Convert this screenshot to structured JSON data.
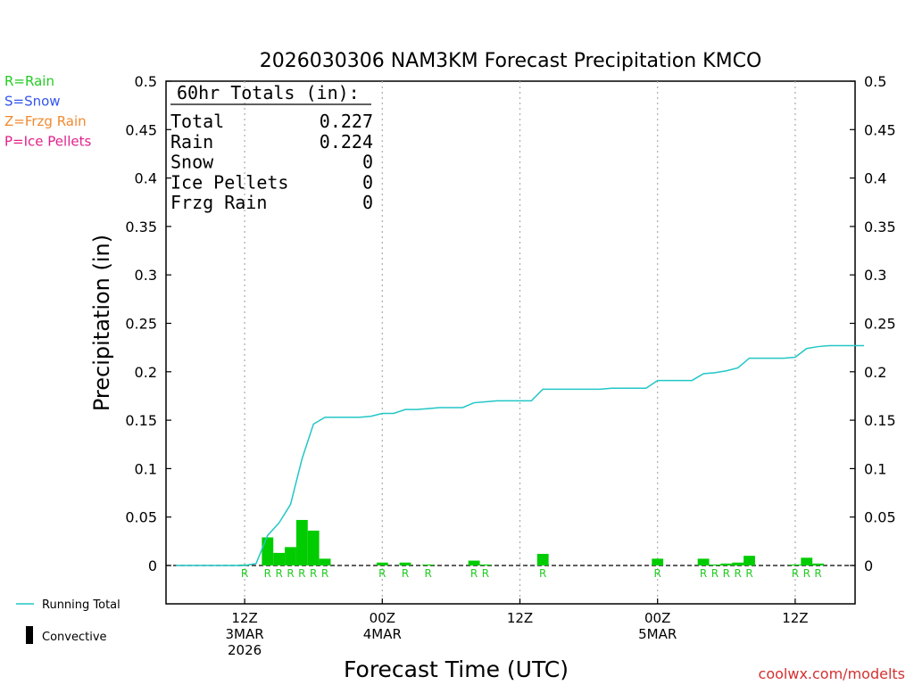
{
  "chart_data": {
    "type": "bar",
    "title": "2026030306 NAM3KM Forecast Precipitation KMCO",
    "xlabel": "Forecast Time (UTC)",
    "ylabel": "Precipitation (in)",
    "ylim": [
      -0.04,
      0.5
    ],
    "xlim_hours": [
      0,
      60
    ],
    "yticks": [
      "0.5",
      "0.45",
      "0.4",
      "0.35",
      "0.3",
      "0.25",
      "0.2",
      "0.15",
      "0.1",
      "0.05",
      "0"
    ],
    "ytick_values": [
      0.5,
      0.45,
      0.4,
      0.35,
      0.3,
      0.25,
      0.2,
      0.15,
      0.1,
      0.05,
      0
    ],
    "xticks": [
      {
        "hour": 6,
        "lines": [
          "12Z",
          "3MAR",
          "2026"
        ]
      },
      {
        "hour": 18,
        "lines": [
          "00Z",
          "4MAR"
        ]
      },
      {
        "hour": 30,
        "lines": [
          "12Z"
        ]
      },
      {
        "hour": 42,
        "lines": [
          "00Z",
          "5MAR"
        ]
      },
      {
        "hour": 54,
        "lines": [
          "12Z"
        ]
      }
    ],
    "legend_types": [
      {
        "label": "R=Rain",
        "color": "#22cc22"
      },
      {
        "label": "S=Snow",
        "color": "#3355ee"
      },
      {
        "label": "Z=Frzg Rain",
        "color": "#f08a30"
      },
      {
        "label": "P=Ice Pellets",
        "color": "#e0228a"
      }
    ],
    "legend_lines": {
      "running_total": "Running Total",
      "convective": "Convective"
    },
    "totals": {
      "heading": "60hr Totals (in):",
      "rows": [
        {
          "label": "Total",
          "value": "0.227"
        },
        {
          "label": "Rain",
          "value": "0.224"
        },
        {
          "label": "Snow",
          "value": "0"
        },
        {
          "label": "Ice Pellets",
          "value": "0"
        },
        {
          "label": "Frzg Rain",
          "value": "0"
        }
      ]
    },
    "hourly_bars": [
      {
        "hour": 6,
        "value": 0.001,
        "type": "R"
      },
      {
        "hour": 8,
        "value": 0.029,
        "type": "R"
      },
      {
        "hour": 9,
        "value": 0.013,
        "type": "R"
      },
      {
        "hour": 10,
        "value": 0.019,
        "type": "R"
      },
      {
        "hour": 11,
        "value": 0.047,
        "type": "R"
      },
      {
        "hour": 12,
        "value": 0.036,
        "type": "R"
      },
      {
        "hour": 13,
        "value": 0.007,
        "type": "R"
      },
      {
        "hour": 18,
        "value": 0.003,
        "type": "R"
      },
      {
        "hour": 20,
        "value": 0.003,
        "type": "R"
      },
      {
        "hour": 22,
        "value": 0.001,
        "type": "R"
      },
      {
        "hour": 26,
        "value": 0.005,
        "type": "R"
      },
      {
        "hour": 27,
        "value": 0.001,
        "type": "R"
      },
      {
        "hour": 32,
        "value": 0.012,
        "type": "R"
      },
      {
        "hour": 42,
        "value": 0.007,
        "type": "R"
      },
      {
        "hour": 46,
        "value": 0.007,
        "type": "R"
      },
      {
        "hour": 47,
        "value": 0.001,
        "type": "R"
      },
      {
        "hour": 48,
        "value": 0.002,
        "type": "R"
      },
      {
        "hour": 49,
        "value": 0.003,
        "type": "R"
      },
      {
        "hour": 50,
        "value": 0.01,
        "type": "R"
      },
      {
        "hour": 54,
        "value": 0.001,
        "type": "R"
      },
      {
        "hour": 55,
        "value": 0.008,
        "type": "R"
      },
      {
        "hour": 56,
        "value": 0.002,
        "type": "R"
      }
    ],
    "running_total": {
      "hours": [
        0,
        6,
        6.5,
        7,
        8,
        9,
        10,
        11,
        12,
        13,
        14,
        15,
        16,
        17,
        18,
        19,
        20,
        21,
        22,
        23,
        24,
        25,
        26,
        27,
        28,
        29,
        30,
        31,
        32,
        33,
        34,
        35,
        36,
        37,
        38,
        39,
        40,
        41,
        42,
        43,
        44,
        45,
        46,
        47,
        48,
        49,
        50,
        51,
        52,
        53,
        54,
        55,
        56,
        57,
        58,
        59,
        60
      ],
      "values": [
        0,
        0,
        0.001,
        0.002,
        0.031,
        0.044,
        0.063,
        0.11,
        0.146,
        0.153,
        0.153,
        0.153,
        0.153,
        0.154,
        0.157,
        0.157,
        0.161,
        0.161,
        0.162,
        0.163,
        0.163,
        0.163,
        0.168,
        0.169,
        0.17,
        0.17,
        0.17,
        0.17,
        0.182,
        0.182,
        0.182,
        0.182,
        0.182,
        0.182,
        0.183,
        0.183,
        0.183,
        0.183,
        0.191,
        0.191,
        0.191,
        0.191,
        0.198,
        0.199,
        0.201,
        0.204,
        0.214,
        0.214,
        0.214,
        0.214,
        0.215,
        0.224,
        0.226,
        0.227,
        0.227,
        0.227,
        0.227
      ]
    },
    "colors": {
      "bar": "#00cc00",
      "rain_marker": "#22cc22",
      "running_total": "#22c6c6",
      "axis": "#000000",
      "grid": "#aaaaaa"
    }
  },
  "watermark": "coolwx.com/modelts"
}
